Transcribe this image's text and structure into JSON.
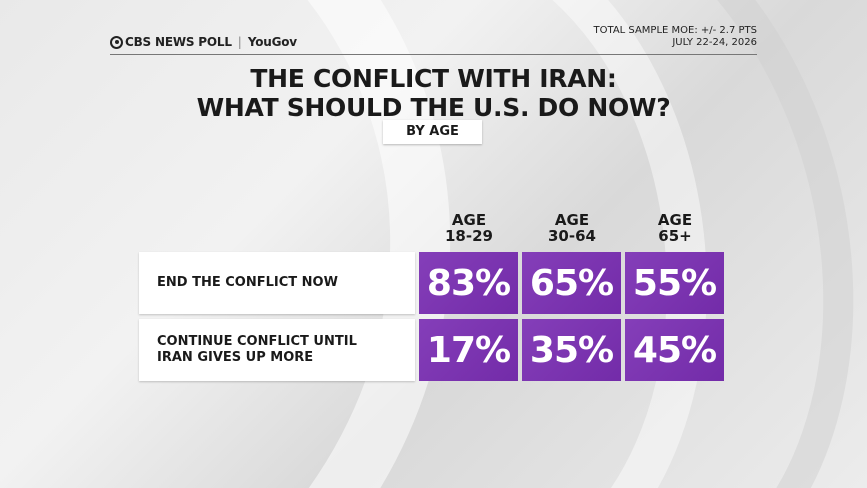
{
  "header": {
    "brand_cbs": "CBS NEWS POLL",
    "brand_yougov": "YouGov",
    "moe": "TOTAL SAMPLE MOE: +/- 2.7 PTS",
    "dates": "JULY 22-24, 2026"
  },
  "chart_data": {
    "type": "table",
    "title": [
      "THE CONFLICT WITH IRAN:",
      "WHAT SHOULD THE U.S. DO NOW?"
    ],
    "subtitle": "BY AGE",
    "columns": [
      {
        "line1": "AGE",
        "line2": "18-29"
      },
      {
        "line1": "AGE",
        "line2": "30-64"
      },
      {
        "line1": "AGE",
        "line2": "65+"
      }
    ],
    "rows": [
      {
        "label": [
          "END THE CONFLICT NOW"
        ],
        "values": [
          83,
          65,
          55
        ],
        "display": [
          "83%",
          "65%",
          "55%"
        ]
      },
      {
        "label": [
          "CONTINUE CONFLICT UNTIL",
          "IRAN GIVES UP MORE"
        ],
        "values": [
          17,
          35,
          45
        ],
        "display": [
          "17%",
          "35%",
          "45%"
        ]
      }
    ],
    "unit": "%"
  },
  "colors": {
    "cell_fill": "#7a2eb3",
    "cell_text": "#ffffff"
  }
}
